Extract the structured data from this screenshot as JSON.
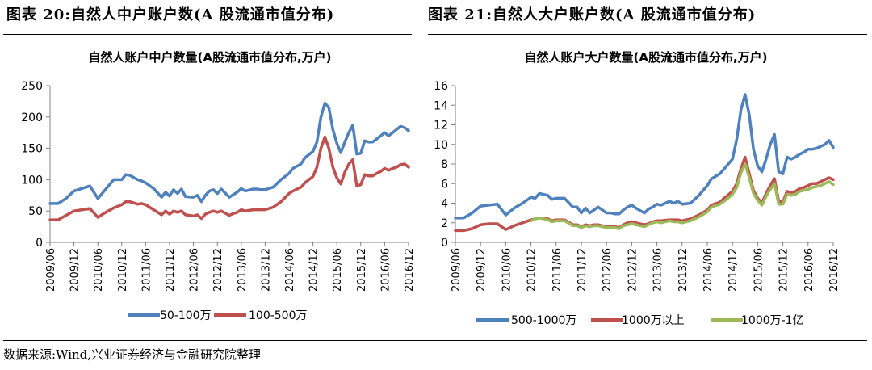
{
  "figures": [
    {
      "title": "图表 20:自然人中户账户数(A 股流通市值分布)"
    },
    {
      "title": "图表 21:自然人大户账户数(A 股流通市值分布)"
    }
  ],
  "source": "数据来源:Wind,兴业证券经济与金融研究院整理",
  "chart_data": [
    {
      "type": "line",
      "title": "自然人账户中户数量(A股流通市值分布,万户)",
      "xlabel": "",
      "ylabel": "",
      "x_ticks": [
        "2009/06",
        "2009/12",
        "2010/06",
        "2010/12",
        "2011/06",
        "2011/12",
        "2012/06",
        "2012/12",
        "2013/06",
        "2013/12",
        "2014/06",
        "2014/12",
        "2015/06",
        "2015/12",
        "2016/06",
        "2016/12"
      ],
      "y_ticks": [
        "0",
        "50",
        "100",
        "150",
        "200",
        "250"
      ],
      "ylim": [
        0,
        250
      ],
      "x_start": "2009-06",
      "x_end": "2016-12",
      "grid": false,
      "legend": "bottom",
      "series": [
        {
          "name": "50-100万",
          "color": "#4f81bd",
          "x": [
            "2009-06",
            "2009-08",
            "2009-10",
            "2009-12",
            "2010-02",
            "2010-04",
            "2010-06",
            "2010-08",
            "2010-10",
            "2010-12",
            "2011-01",
            "2011-02",
            "2011-04",
            "2011-05",
            "2011-06",
            "2011-08",
            "2011-10",
            "2011-11",
            "2011-12",
            "2012-01",
            "2012-02",
            "2012-03",
            "2012-04",
            "2012-06",
            "2012-07",
            "2012-08",
            "2012-09",
            "2012-10",
            "2012-11",
            "2012-12",
            "2013-01",
            "2013-03",
            "2013-04",
            "2013-05",
            "2013-06",
            "2013-07",
            "2013-09",
            "2013-10",
            "2013-11",
            "2013-12",
            "2014-02",
            "2014-04",
            "2014-06",
            "2014-07",
            "2014-09",
            "2014-10",
            "2014-12",
            "2015-01",
            "2015-02",
            "2015-03",
            "2015-04",
            "2015-05",
            "2015-06",
            "2015-07",
            "2015-08",
            "2015-09",
            "2015-10",
            "2015-11",
            "2015-12",
            "2016-01",
            "2016-02",
            "2016-03",
            "2016-04",
            "2016-05",
            "2016-06",
            "2016-07",
            "2016-08",
            "2016-09",
            "2016-10",
            "2016-11",
            "2016-12"
          ],
          "values": [
            62,
            62,
            70,
            82,
            86,
            90,
            70,
            85,
            100,
            100,
            108,
            107,
            100,
            98,
            95,
            86,
            72,
            80,
            74,
            84,
            78,
            85,
            73,
            72,
            75,
            65,
            75,
            82,
            84,
            78,
            85,
            72,
            76,
            80,
            86,
            82,
            85,
            85,
            84,
            84,
            88,
            100,
            110,
            118,
            125,
            135,
            145,
            160,
            200,
            222,
            215,
            180,
            158,
            143,
            160,
            175,
            187,
            141,
            142,
            162,
            160,
            160,
            165,
            170,
            175,
            170,
            175,
            180,
            185,
            183,
            178
          ]
        },
        {
          "name": "100-500万",
          "color": "#c0504d",
          "x": [
            "2009-06",
            "2009-08",
            "2009-10",
            "2009-12",
            "2010-02",
            "2010-04",
            "2010-06",
            "2010-08",
            "2010-10",
            "2010-12",
            "2011-01",
            "2011-02",
            "2011-04",
            "2011-05",
            "2011-06",
            "2011-08",
            "2011-10",
            "2011-11",
            "2011-12",
            "2012-01",
            "2012-02",
            "2012-03",
            "2012-04",
            "2012-06",
            "2012-07",
            "2012-08",
            "2012-09",
            "2012-10",
            "2012-11",
            "2012-12",
            "2013-01",
            "2013-03",
            "2013-04",
            "2013-05",
            "2013-06",
            "2013-07",
            "2013-09",
            "2013-10",
            "2013-11",
            "2013-12",
            "2014-02",
            "2014-04",
            "2014-06",
            "2014-07",
            "2014-09",
            "2014-10",
            "2014-12",
            "2015-01",
            "2015-02",
            "2015-03",
            "2015-04",
            "2015-05",
            "2015-06",
            "2015-07",
            "2015-08",
            "2015-09",
            "2015-10",
            "2015-11",
            "2015-12",
            "2016-01",
            "2016-02",
            "2016-03",
            "2016-04",
            "2016-05",
            "2016-06",
            "2016-07",
            "2016-08",
            "2016-09",
            "2016-10",
            "2016-11",
            "2016-12"
          ],
          "values": [
            36,
            36,
            43,
            50,
            52,
            54,
            40,
            48,
            55,
            60,
            65,
            65,
            61,
            62,
            60,
            52,
            44,
            50,
            45,
            50,
            48,
            50,
            44,
            42,
            44,
            38,
            45,
            48,
            50,
            48,
            50,
            43,
            46,
            48,
            52,
            50,
            52,
            52,
            52,
            52,
            56,
            65,
            78,
            82,
            88,
            95,
            105,
            120,
            150,
            168,
            150,
            120,
            103,
            93,
            112,
            125,
            132,
            90,
            92,
            108,
            106,
            106,
            110,
            113,
            118,
            115,
            118,
            120,
            124,
            125,
            120
          ]
        }
      ]
    },
    {
      "type": "line",
      "title": "自然人账户大户数量(A股流通市值分布,万户)",
      "xlabel": "",
      "ylabel": "",
      "x_ticks": [
        "2009/06",
        "2009/12",
        "2010/06",
        "2010/12",
        "2011/06",
        "2011/12",
        "2012/06",
        "2012/12",
        "2013/06",
        "2013/12",
        "2014/06",
        "2014/12",
        "2015/06",
        "2015/12",
        "2016/06",
        "2016/12"
      ],
      "y_ticks": [
        "0",
        "2",
        "4",
        "6",
        "8",
        "10",
        "12",
        "14",
        "16"
      ],
      "ylim": [
        0,
        16
      ],
      "x_start": "2009-06",
      "x_end": "2016-12",
      "grid": false,
      "legend": "bottom",
      "series": [
        {
          "name": "500-1000万",
          "color": "#4f81bd",
          "x": [
            "2009-06",
            "2009-08",
            "2009-10",
            "2009-12",
            "2010-02",
            "2010-04",
            "2010-06",
            "2010-08",
            "2010-10",
            "2010-12",
            "2011-01",
            "2011-02",
            "2011-04",
            "2011-05",
            "2011-06",
            "2011-08",
            "2011-10",
            "2011-11",
            "2011-12",
            "2012-01",
            "2012-02",
            "2012-03",
            "2012-04",
            "2012-06",
            "2012-07",
            "2012-08",
            "2012-09",
            "2012-10",
            "2012-11",
            "2012-12",
            "2013-01",
            "2013-03",
            "2013-04",
            "2013-05",
            "2013-06",
            "2013-07",
            "2013-09",
            "2013-10",
            "2013-11",
            "2013-12",
            "2014-02",
            "2014-04",
            "2014-06",
            "2014-07",
            "2014-09",
            "2014-10",
            "2014-12",
            "2015-01",
            "2015-02",
            "2015-03",
            "2015-04",
            "2015-05",
            "2015-06",
            "2015-07",
            "2015-08",
            "2015-09",
            "2015-10",
            "2015-11",
            "2015-12",
            "2016-01",
            "2016-02",
            "2016-03",
            "2016-04",
            "2016-05",
            "2016-06",
            "2016-07",
            "2016-08",
            "2016-09",
            "2016-10",
            "2016-11",
            "2016-12"
          ],
          "values": [
            2.5,
            2.5,
            3.0,
            3.7,
            3.8,
            3.9,
            2.8,
            3.5,
            4.0,
            4.6,
            4.5,
            5.0,
            4.8,
            4.4,
            4.5,
            4.5,
            3.6,
            3.6,
            3.0,
            3.5,
            3.0,
            3.3,
            3.6,
            3.0,
            3.0,
            2.9,
            2.9,
            3.3,
            3.6,
            3.8,
            3.5,
            3.0,
            3.4,
            3.6,
            3.9,
            3.8,
            4.2,
            4.0,
            4.2,
            3.9,
            4.0,
            4.8,
            5.8,
            6.5,
            7.0,
            7.5,
            8.5,
            10.5,
            13.5,
            15.1,
            13.0,
            9.5,
            7.8,
            7.2,
            8.5,
            10.0,
            11.0,
            7.2,
            7.0,
            8.7,
            8.5,
            8.7,
            9.0,
            9.2,
            9.5,
            9.5,
            9.6,
            9.8,
            10.0,
            10.4,
            9.7
          ]
        },
        {
          "name": "1000万以上",
          "color": "#c0504d",
          "x": [
            "2009-06",
            "2009-08",
            "2009-10",
            "2009-12",
            "2010-02",
            "2010-04",
            "2010-06",
            "2010-08",
            "2010-10",
            "2010-12",
            "2011-01",
            "2011-02",
            "2011-04",
            "2011-05",
            "2011-06",
            "2011-08",
            "2011-10",
            "2011-11",
            "2011-12",
            "2012-01",
            "2012-02",
            "2012-03",
            "2012-04",
            "2012-06",
            "2012-07",
            "2012-08",
            "2012-09",
            "2012-10",
            "2012-11",
            "2012-12",
            "2013-01",
            "2013-03",
            "2013-04",
            "2013-05",
            "2013-06",
            "2013-07",
            "2013-09",
            "2013-10",
            "2013-11",
            "2013-12",
            "2014-02",
            "2014-04",
            "2014-06",
            "2014-07",
            "2014-09",
            "2014-10",
            "2014-12",
            "2015-01",
            "2015-02",
            "2015-03",
            "2015-04",
            "2015-05",
            "2015-06",
            "2015-07",
            "2015-08",
            "2015-09",
            "2015-10",
            "2015-11",
            "2015-12",
            "2016-01",
            "2016-02",
            "2016-03",
            "2016-04",
            "2016-05",
            "2016-06",
            "2016-07",
            "2016-08",
            "2016-09",
            "2016-10",
            "2016-11",
            "2016-12"
          ],
          "values": [
            1.2,
            1.2,
            1.4,
            1.8,
            1.9,
            1.9,
            1.3,
            1.7,
            2.0,
            2.3,
            2.4,
            2.5,
            2.4,
            2.2,
            2.3,
            2.3,
            1.8,
            1.8,
            1.6,
            1.8,
            1.7,
            1.8,
            1.8,
            1.6,
            1.6,
            1.6,
            1.5,
            1.8,
            2.0,
            2.1,
            2.0,
            1.8,
            1.9,
            2.1,
            2.2,
            2.2,
            2.3,
            2.3,
            2.3,
            2.2,
            2.4,
            2.8,
            3.3,
            3.8,
            4.1,
            4.5,
            5.2,
            6.0,
            7.5,
            8.7,
            7.0,
            5.3,
            4.5,
            4.0,
            5.0,
            5.8,
            6.5,
            4.2,
            4.1,
            5.2,
            5.1,
            5.2,
            5.5,
            5.6,
            5.8,
            6.0,
            6.0,
            6.2,
            6.4,
            6.6,
            6.4
          ]
        },
        {
          "name": "1000万-1亿",
          "color": "#9bbb59",
          "x": [
            "2010-12",
            "2011-01",
            "2011-02",
            "2011-04",
            "2011-05",
            "2011-06",
            "2011-08",
            "2011-10",
            "2011-11",
            "2011-12",
            "2012-01",
            "2012-02",
            "2012-03",
            "2012-04",
            "2012-06",
            "2012-07",
            "2012-08",
            "2012-09",
            "2012-10",
            "2012-11",
            "2012-12",
            "2013-01",
            "2013-03",
            "2013-04",
            "2013-05",
            "2013-06",
            "2013-07",
            "2013-09",
            "2013-10",
            "2013-11",
            "2013-12",
            "2014-02",
            "2014-04",
            "2014-06",
            "2014-07",
            "2014-09",
            "2014-10",
            "2014-12",
            "2015-01",
            "2015-02",
            "2015-03",
            "2015-04",
            "2015-05",
            "2015-06",
            "2015-07",
            "2015-08",
            "2015-09",
            "2015-10",
            "2015-11",
            "2015-12",
            "2016-01",
            "2016-02",
            "2016-03",
            "2016-04",
            "2016-05",
            "2016-06",
            "2016-07",
            "2016-08",
            "2016-09",
            "2016-10",
            "2016-11",
            "2016-12"
          ],
          "values": [
            2.2,
            2.4,
            2.5,
            2.3,
            2.1,
            2.2,
            2.2,
            1.7,
            1.7,
            1.5,
            1.7,
            1.6,
            1.7,
            1.7,
            1.5,
            1.5,
            1.5,
            1.4,
            1.7,
            1.8,
            1.9,
            1.8,
            1.6,
            1.8,
            2.0,
            2.1,
            2.0,
            2.2,
            2.1,
            2.1,
            2.0,
            2.2,
            2.6,
            3.1,
            3.6,
            3.9,
            4.2,
            4.9,
            5.6,
            7.1,
            8.0,
            6.6,
            5.0,
            4.3,
            3.8,
            4.7,
            5.4,
            6.0,
            3.9,
            3.9,
            4.9,
            4.8,
            4.9,
            5.2,
            5.3,
            5.4,
            5.6,
            5.7,
            5.8,
            6.0,
            6.2,
            5.9
          ]
        }
      ]
    }
  ]
}
